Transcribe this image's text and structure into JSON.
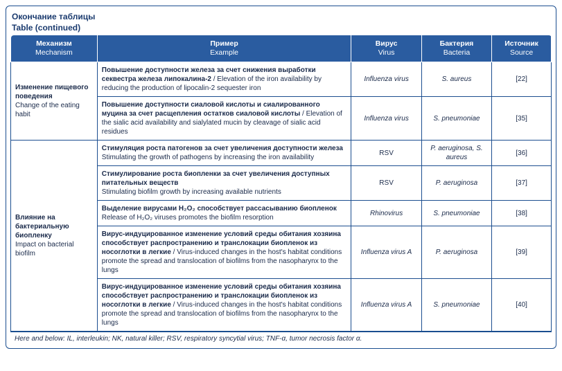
{
  "caption": {
    "line1": "Окончание таблицы",
    "line2": "Table (continued)"
  },
  "columns": [
    {
      "ru": "Механизм",
      "en": "Mechanism",
      "width": "16%"
    },
    {
      "ru": "Пример",
      "en": "Example",
      "width": "47%"
    },
    {
      "ru": "Вирус",
      "en": "Virus",
      "width": "13%"
    },
    {
      "ru": "Бактерия",
      "en": "Bacteria",
      "width": "13%"
    },
    {
      "ru": "Источник",
      "en": "Source",
      "width": "11%"
    }
  ],
  "rows": [
    {
      "mech": {
        "ru": "Изменение пищевого поведения",
        "en": "Change of the eating habit"
      },
      "rowspan": 2,
      "example": {
        "ru": "Повышение доступности железа за счет снижения выработки секвестра железа липокалина-2",
        "en": " / Elevation of the iron availability by reducing the production of lipocalin-2 sequester iron"
      },
      "virus": "Influenza virus",
      "bacteria": "S. aureus",
      "source": "[22]"
    },
    {
      "example": {
        "ru": "Повышение доступности сиаловой кислоты и сиалированного муцина за счет расщепления остатков сиаловой кислоты",
        "en": " / Elevation of the sialic acid availability and sialylated mucin by cleavage of sialic acid residues"
      },
      "virus": "Influenza virus",
      "bacteria": "S. pneumoniae",
      "source": "[35]"
    },
    {
      "mech": {
        "ru": "Влияние на бактериальную биопленку",
        "en": "Impact on bacterial biofilm"
      },
      "rowspan": 5,
      "example": {
        "ru": "Стимуляция роста патогенов за счет увеличения доступности железа",
        "en": "Stimulating the growth of pathogens by increasing the iron availability",
        "block": true
      },
      "virus": "RSV",
      "bacteria": "P. aeruginosa, S. aureus",
      "source": "[36]",
      "virusPlain": true
    },
    {
      "example": {
        "ru": "Стимулирование роста биопленки за счет увеличения доступных питательных веществ",
        "en": "Stimulating biofilm growth by increasing available nutrients",
        "block": true
      },
      "virus": "RSV",
      "bacteria": "P. aeruginosa",
      "source": "[37]",
      "virusPlain": true
    },
    {
      "example": {
        "ru": "Выделение вирусами H₂O₂ способствует рассасыванию биопленок",
        "en": "Release of H₂O₂ viruses promotes the biofilm resorption",
        "block": true
      },
      "virus": "Rhinovirus",
      "bacteria": "S. pneumoniae",
      "source": "[38]"
    },
    {
      "example": {
        "ru": "Вирус-индуцированное изменение условий среды обитания хозяина способствует распространению и транслокации биопленок из носоглотки в легкие",
        "en": " / Virus-induced changes in the host's habitat conditions promote the spread and translocation of biofilms from the nasopharynx to the lungs"
      },
      "virus": "Influenza virus A",
      "bacteria": "P. aeruginosa",
      "source": "[39]"
    },
    {
      "example": {
        "ru": "Вирус-индуцированное изменение условий среды обитания хозяина способствует распространению и транслокации биопленок из носоглотки в легкие",
        "en": " / Virus-induced changes in the host's habitat conditions promote the spread and translocation of biofilms from the nasopharynx to the lungs"
      },
      "virus": "Influenza virus A",
      "bacteria": "S. pneumoniae",
      "source": "[40]"
    }
  ],
  "footnote": "Here and below: IL, interleukin; NK, natural killer; RSV, respiratory syncytial virus; TNF-α, tumor necrosis factor α.",
  "colors": {
    "headerBg": "#2a5ca0",
    "border": "#1a4d8f",
    "text": "#1a2a4a"
  }
}
